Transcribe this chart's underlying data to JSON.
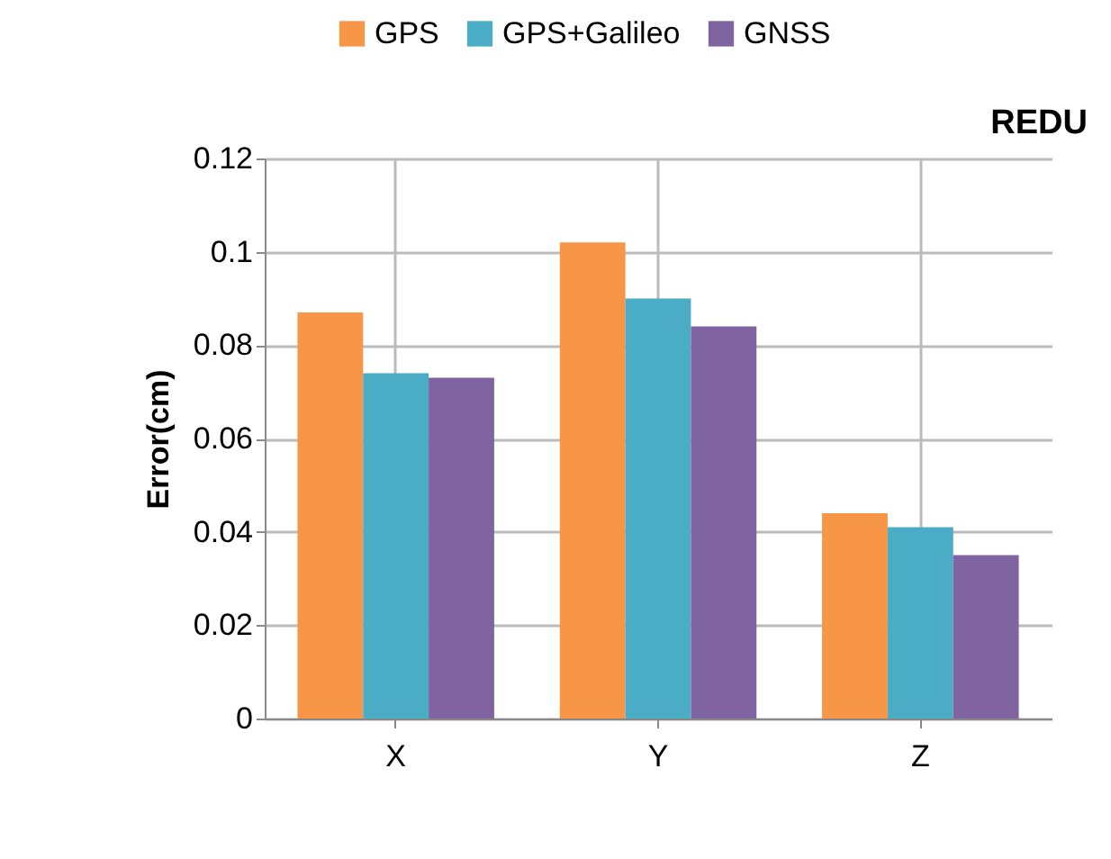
{
  "chart_data": {
    "type": "bar",
    "title": "REDU",
    "ylabel": "Error(cm)",
    "categories": [
      "X",
      "Y",
      "Z"
    ],
    "series": [
      {
        "name": "GPS",
        "color": "#f79646",
        "values": [
          0.087,
          0.102,
          0.044
        ]
      },
      {
        "name": "GPS+Galileo",
        "color": "#4bacc6",
        "values": [
          0.074,
          0.09,
          0.041
        ]
      },
      {
        "name": "GNSS",
        "color": "#8064a2",
        "values": [
          0.073,
          0.084,
          0.035
        ]
      }
    ],
    "ylim": [
      0,
      0.12
    ],
    "yticks": [
      0,
      0.02,
      0.04,
      0.06,
      0.08,
      0.1,
      0.12
    ],
    "grid": true,
    "legend": "top"
  }
}
